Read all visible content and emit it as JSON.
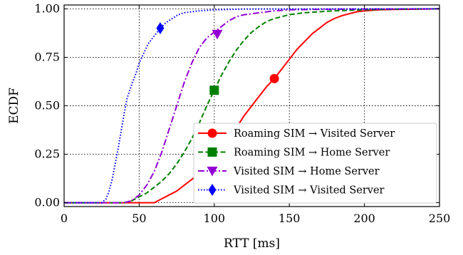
{
  "chart_data": {
    "type": "line",
    "xlabel": "RTT [ms]",
    "ylabel": "ECDF",
    "xlim": [
      0,
      250
    ],
    "ylim": [
      -0.02,
      1.02
    ],
    "xticks": [
      0,
      50,
      100,
      150,
      200,
      250
    ],
    "yticks": [
      0.0,
      0.25,
      0.5,
      0.75,
      1.0
    ],
    "xtick_labels": [
      "0",
      "50",
      "100",
      "150",
      "200",
      "250"
    ],
    "ytick_labels": [
      "0.00",
      "0.25",
      "0.50",
      "0.75",
      "1.00"
    ],
    "grid": true,
    "grid_style": "dotted",
    "legend_position": "lower-right",
    "series": [
      {
        "name": "Roaming SIM → Visited Server",
        "color": "#ff0000",
        "linestyle": "solid",
        "marker": "circle",
        "marker_point": [
          140,
          0.64
        ],
        "x": [
          0,
          60,
          65,
          70,
          75,
          80,
          85,
          90,
          95,
          100,
          105,
          110,
          115,
          120,
          125,
          130,
          135,
          140,
          145,
          150,
          155,
          160,
          165,
          170,
          175,
          180,
          185,
          190,
          195,
          200,
          210,
          220,
          230,
          240,
          250
        ],
        "y": [
          0.0,
          0.0,
          0.02,
          0.04,
          0.06,
          0.09,
          0.12,
          0.15,
          0.19,
          0.23,
          0.28,
          0.33,
          0.39,
          0.45,
          0.5,
          0.55,
          0.6,
          0.64,
          0.69,
          0.74,
          0.79,
          0.83,
          0.87,
          0.9,
          0.93,
          0.95,
          0.965,
          0.975,
          0.985,
          0.99,
          0.995,
          0.997,
          0.998,
          0.999,
          1.0
        ]
      },
      {
        "name": "Roaming SIM → Home Server",
        "color": "#008000",
        "linestyle": "dashed",
        "marker": "square",
        "marker_point": [
          100,
          0.58
        ],
        "x": [
          0,
          40,
          45,
          50,
          55,
          60,
          65,
          70,
          75,
          80,
          85,
          90,
          95,
          100,
          105,
          110,
          115,
          120,
          125,
          130,
          135,
          140,
          145,
          150,
          160,
          170,
          180,
          200,
          225,
          250
        ],
        "y": [
          0.0,
          0.0,
          0.01,
          0.03,
          0.05,
          0.08,
          0.11,
          0.15,
          0.2,
          0.26,
          0.33,
          0.41,
          0.5,
          0.58,
          0.66,
          0.73,
          0.79,
          0.84,
          0.88,
          0.91,
          0.935,
          0.95,
          0.96,
          0.97,
          0.98,
          0.985,
          0.99,
          0.995,
          0.999,
          1.0
        ]
      },
      {
        "name": "Visited SIM → Home Server",
        "color": "#9400d3",
        "linestyle": "dashdot",
        "marker": "triangle-down",
        "marker_point": [
          102,
          0.87
        ],
        "x": [
          0,
          40,
          45,
          50,
          55,
          60,
          65,
          70,
          75,
          80,
          85,
          90,
          95,
          100,
          105,
          110,
          115,
          120,
          130,
          140,
          150,
          175,
          200,
          250
        ],
        "y": [
          0.0,
          0.0,
          0.01,
          0.04,
          0.09,
          0.16,
          0.26,
          0.38,
          0.5,
          0.62,
          0.72,
          0.8,
          0.85,
          0.88,
          0.91,
          0.94,
          0.96,
          0.97,
          0.98,
          0.99,
          0.995,
          0.998,
          0.999,
          1.0
        ]
      },
      {
        "name": "Visited SIM → Visited Server",
        "color": "#0000ff",
        "linestyle": "dotted",
        "marker": "diamond",
        "marker_point": [
          64,
          0.9
        ],
        "x": [
          0,
          25,
          28,
          30,
          32,
          34,
          36,
          38,
          40,
          42,
          45,
          48,
          50,
          53,
          56,
          60,
          64,
          68,
          72,
          76,
          80,
          90,
          100,
          120,
          250
        ],
        "y": [
          0.0,
          0.0,
          0.02,
          0.06,
          0.12,
          0.2,
          0.28,
          0.37,
          0.46,
          0.54,
          0.61,
          0.67,
          0.72,
          0.77,
          0.82,
          0.86,
          0.9,
          0.93,
          0.95,
          0.97,
          0.98,
          0.99,
          0.995,
          0.999,
          1.0
        ]
      }
    ]
  }
}
